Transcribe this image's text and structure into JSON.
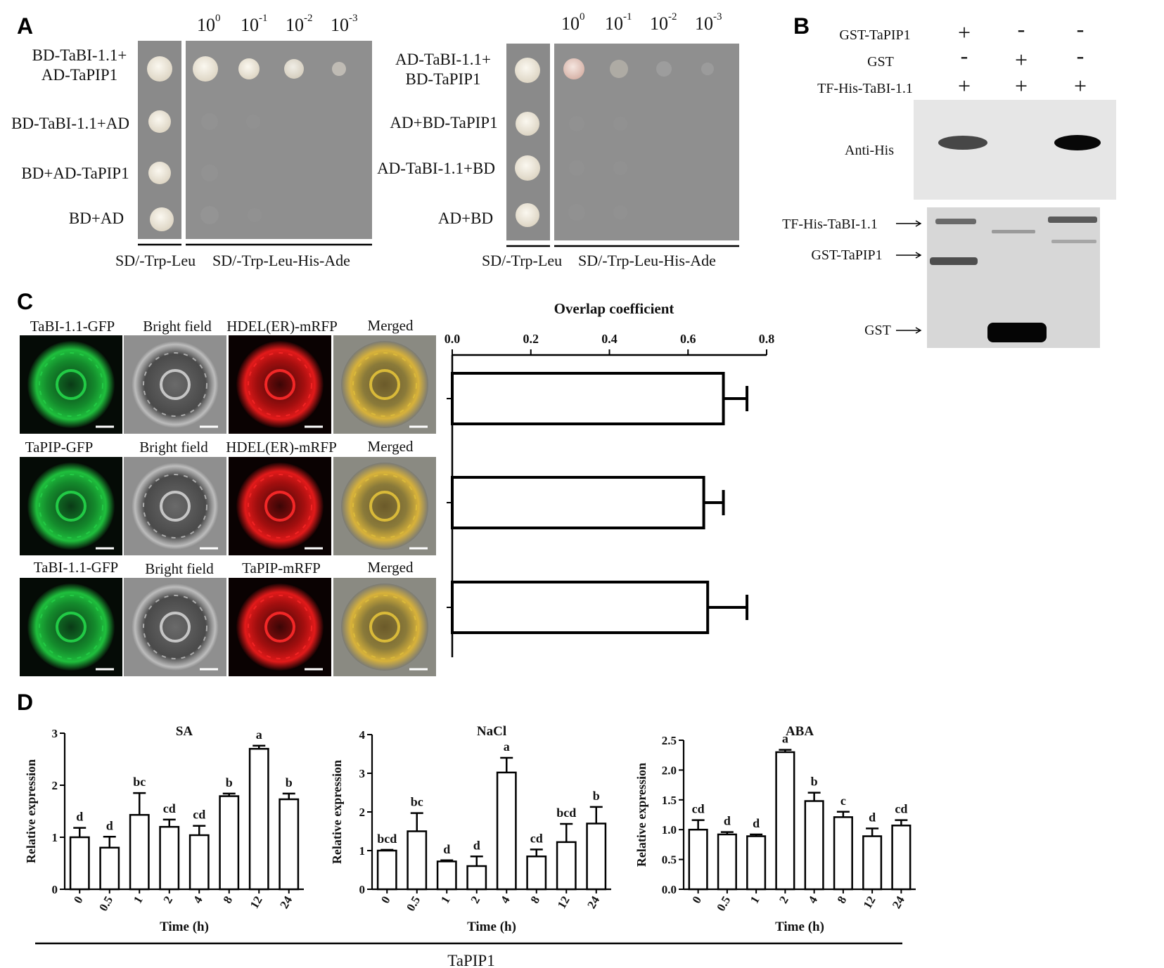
{
  "panels": {
    "a": "A",
    "b": "B",
    "c": "C",
    "d": "D"
  },
  "panel_a": {
    "dilutions": [
      "10",
      "10",
      "10",
      "10"
    ],
    "dilution_exponents": [
      "0",
      "-1",
      "-2",
      "-3"
    ],
    "left_rows": [
      "BD-TaBI-1.1+",
      "AD-TaPIP1",
      "BD-TaBI-1.1+AD",
      "BD+AD-TaPIP1",
      "BD+AD"
    ],
    "right_rows": [
      "AD-TaBI-1.1+",
      "BD-TaPIP1",
      "AD+BD-TaPIP1",
      "AD-TaBI-1.1+BD",
      "AD+BD"
    ],
    "media": [
      "SD/-Trp-Leu",
      "SD/-Trp-Leu-His-Ade"
    ],
    "colors": {
      "plate": "#8c8c8c",
      "colony": "#e9e3d6",
      "pink_colony": "#e8c9c0"
    }
  },
  "panel_b": {
    "rows": [
      "GST-TaPIP1",
      "GST",
      "TF-His-TaBI-1.1"
    ],
    "signs": [
      [
        "+",
        "-",
        "-"
      ],
      [
        "-",
        "+",
        "-"
      ],
      [
        "+",
        "+",
        "+"
      ]
    ],
    "blot_label": "Anti-His",
    "gel_labels": [
      "TF-His-TaBI-1.1",
      "GST-TaPIP1",
      "GST"
    ]
  },
  "panel_c": {
    "image_rows": [
      [
        "TaBI-1.1-GFP",
        "Bright field",
        "HDEL(ER)-mRFP",
        "Merged"
      ],
      [
        "TaPIP-GFP",
        "Bright field",
        "HDEL(ER)-mRFP",
        "Merged"
      ],
      [
        "TaBI-1.1-GFP",
        "Bright field",
        "TaPIP-mRFP",
        "Merged"
      ]
    ],
    "chart_title": "Overlap coefficient",
    "x_ticks": [
      "0.0",
      "0.2",
      "0.4",
      "0.6",
      "0.8"
    ]
  },
  "panel_d": {
    "ylabel": "Relative expression",
    "xlabel": "Time (h)",
    "gene": "TaPIP1"
  },
  "chart_data": [
    {
      "type": "bar",
      "orientation": "horizontal",
      "title": "Overlap coefficient",
      "xlim": [
        0,
        0.8
      ],
      "values": [
        0.69,
        0.64,
        0.65
      ],
      "errors": [
        0.06,
        0.05,
        0.1
      ]
    },
    {
      "type": "bar",
      "title": "SA",
      "xlabel": "Time (h)",
      "ylabel": "Relative expression",
      "ylim": [
        0,
        3
      ],
      "yticks": [
        "0",
        "1",
        "2",
        "3"
      ],
      "categories": [
        "0",
        "0.5",
        "1",
        "2",
        "4",
        "8",
        "12",
        "24"
      ],
      "values": [
        1.0,
        0.8,
        1.43,
        1.2,
        1.04,
        1.79,
        2.7,
        1.73
      ],
      "errors": [
        0.18,
        0.21,
        0.42,
        0.14,
        0.18,
        0.05,
        0.06,
        0.11
      ],
      "letters": [
        "d",
        "d",
        "bc",
        "cd",
        "cd",
        "b",
        "a",
        "b"
      ]
    },
    {
      "type": "bar",
      "title": "NaCl",
      "xlabel": "Time (h)",
      "ylabel": "Relative expression",
      "ylim": [
        0,
        4
      ],
      "yticks": [
        "0",
        "1",
        "2",
        "3",
        "4"
      ],
      "categories": [
        "0",
        "0.5",
        "1",
        "2",
        "4",
        "8",
        "12",
        "24"
      ],
      "values": [
        1.0,
        1.5,
        0.72,
        0.6,
        3.02,
        0.85,
        1.22,
        1.7
      ],
      "errors": [
        0.02,
        0.47,
        0.03,
        0.25,
        0.38,
        0.18,
        0.47,
        0.43
      ],
      "letters": [
        "bcd",
        "bc",
        "d",
        "d",
        "a",
        "cd",
        "bcd",
        "b"
      ]
    },
    {
      "type": "bar",
      "title": "ABA",
      "xlabel": "Time (h)",
      "ylabel": "Relative expression",
      "ylim": [
        0,
        2.5
      ],
      "yticks": [
        "0.0",
        "0.5",
        "1.0",
        "1.5",
        "2.0",
        "2.5"
      ],
      "categories": [
        "0",
        "0.5",
        "1",
        "2",
        "4",
        "8",
        "12",
        "24"
      ],
      "values": [
        1.0,
        0.92,
        0.89,
        2.3,
        1.48,
        1.21,
        0.89,
        1.07
      ],
      "errors": [
        0.16,
        0.04,
        0.03,
        0.04,
        0.14,
        0.09,
        0.13,
        0.09
      ],
      "letters": [
        "cd",
        "d",
        "d",
        "a",
        "b",
        "c",
        "d",
        "cd"
      ]
    }
  ]
}
